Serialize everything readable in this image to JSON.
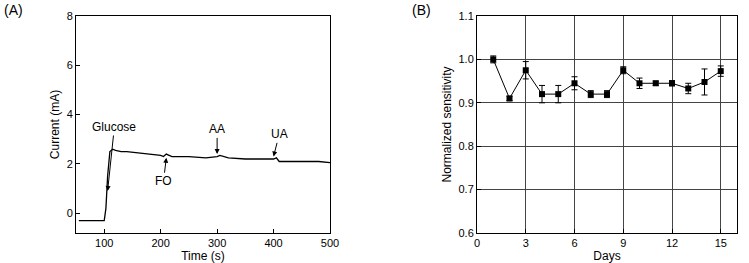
{
  "chart_data": [
    {
      "type": "line",
      "title": "(A)",
      "x_label": "Time (s)",
      "y_label": "Current (mA)",
      "x": [
        55,
        60,
        70,
        80,
        90,
        100,
        103,
        106,
        110,
        115,
        120,
        130,
        140,
        160,
        180,
        200,
        205,
        210,
        215,
        220,
        250,
        280,
        300,
        305,
        320,
        350,
        380,
        400,
        405,
        410,
        430,
        460,
        480,
        500
      ],
      "series": [
        {
          "name": "Current",
          "color": "#000000",
          "values": [
            -0.3,
            -0.3,
            -0.3,
            -0.3,
            -0.3,
            -0.3,
            0.2,
            1.5,
            2.5,
            2.6,
            2.55,
            2.5,
            2.5,
            2.45,
            2.4,
            2.35,
            2.3,
            2.4,
            2.35,
            2.3,
            2.3,
            2.25,
            2.3,
            2.35,
            2.25,
            2.2,
            2.2,
            2.2,
            2.25,
            2.1,
            2.1,
            2.1,
            2.1,
            2.05
          ]
        }
      ],
      "marker": "none",
      "line_style": "solid",
      "xlim": [
        50,
        500
      ],
      "xticks": [
        100,
        200,
        300,
        400,
        500
      ],
      "ylim": [
        -0.8,
        8
      ],
      "yticks": [
        0,
        2,
        4,
        6,
        8
      ],
      "grid": false,
      "annotations": [
        {
          "text": "Glucose",
          "x": 106,
          "y": 0.9,
          "text_x": 118,
          "text_y": 3.5
        },
        {
          "text": "FO",
          "x": 210,
          "y": 2.25,
          "text_x": 205,
          "text_y": 1.3
        },
        {
          "text": "AA",
          "x": 300,
          "y": 2.4,
          "text_x": 300,
          "text_y": 3.4
        },
        {
          "text": "UA",
          "x": 400,
          "y": 2.3,
          "text_x": 410,
          "text_y": 3.2
        }
      ]
    },
    {
      "type": "line",
      "title": "(B)",
      "x_label": "Days",
      "y_label": "Normalized sensitivity",
      "x": [
        1,
        2,
        3,
        4,
        5,
        6,
        7,
        8,
        9,
        10,
        11,
        12,
        13,
        14,
        15
      ],
      "series": [
        {
          "name": "Normalized sensitivity",
          "color": "#000000",
          "values": [
            1.0,
            0.91,
            0.975,
            0.92,
            0.92,
            0.945,
            0.92,
            0.92,
            0.975,
            0.945,
            0.945,
            0.945,
            0.933,
            0.948,
            0.973
          ],
          "errors": [
            0.008,
            0.005,
            0.02,
            0.02,
            0.02,
            0.015,
            0.008,
            0.008,
            0.008,
            0.012,
            0.005,
            0.006,
            0.012,
            0.03,
            0.012
          ]
        }
      ],
      "marker": "square",
      "line_style": "solid",
      "xlim": [
        0,
        16
      ],
      "xticks": [
        0,
        3,
        6,
        9,
        12,
        15
      ],
      "ylim": [
        0.6,
        1.1
      ],
      "yticks": [
        0.6,
        0.7,
        0.8,
        0.9,
        {
          "value": 1,
          "label": "1.0"
        },
        1.1
      ],
      "grid": true
    }
  ]
}
